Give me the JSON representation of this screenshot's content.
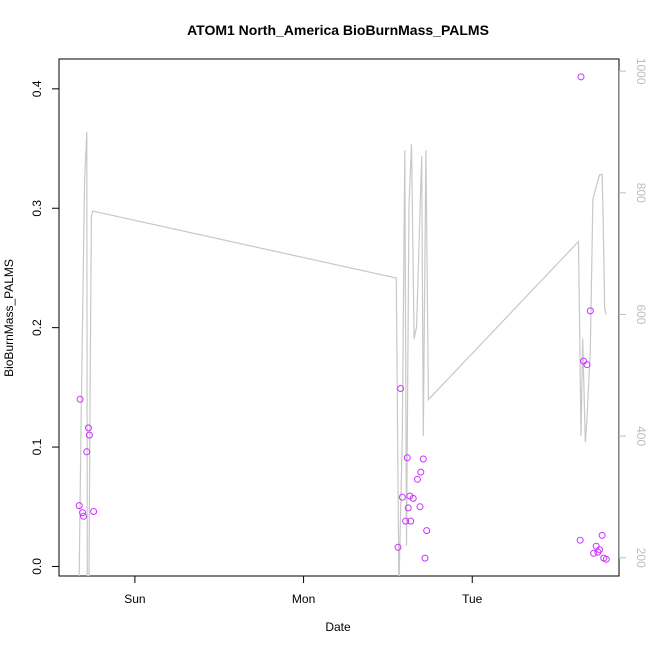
{
  "chart_data": {
    "type": "scatter",
    "title": "ATOM1 North_America BioBurnMass_PALMS",
    "xlabel": "Date",
    "ylabel": "BioBurnMass_PALMS",
    "x_ticks": [
      {
        "label": "Sun",
        "value": 0.0
      },
      {
        "label": "Mon",
        "value": 1.0
      },
      {
        "label": "Tue",
        "value": 2.0
      }
    ],
    "xlim": [
      -0.45,
      2.87
    ],
    "ylim": [
      -0.008,
      0.425
    ],
    "y_ticks": [
      0.0,
      0.1,
      0.2,
      0.3,
      0.4
    ],
    "y_right": {
      "reversed": true,
      "ylim": [
        1020,
        170
      ],
      "ticks": [
        200,
        400,
        600,
        800,
        1000
      ],
      "color": "#bdbdbd"
    },
    "points_color": "#cc33ff",
    "line_color": "#c8c8c8",
    "series": [
      {
        "values": [
          [
            -0.33,
            0.051
          ],
          [
            -0.325,
            0.14
          ],
          [
            -0.31,
            0.045
          ],
          [
            -0.305,
            0.042
          ],
          [
            -0.285,
            0.096
          ],
          [
            -0.275,
            0.116
          ],
          [
            -0.27,
            0.11
          ],
          [
            -0.245,
            0.046
          ],
          [
            1.56,
            0.016
          ],
          [
            1.575,
            0.149
          ],
          [
            1.585,
            0.058
          ],
          [
            1.605,
            0.038
          ],
          [
            1.615,
            0.091
          ],
          [
            1.62,
            0.049
          ],
          [
            1.63,
            0.059
          ],
          [
            1.635,
            0.038
          ],
          [
            1.65,
            0.057
          ],
          [
            1.675,
            0.073
          ],
          [
            1.69,
            0.05
          ],
          [
            1.695,
            0.079
          ],
          [
            1.71,
            0.09
          ],
          [
            1.72,
            0.007
          ],
          [
            1.73,
            0.03
          ],
          [
            2.64,
            0.022
          ],
          [
            2.645,
            0.41
          ],
          [
            2.66,
            0.172
          ],
          [
            2.68,
            0.169
          ],
          [
            2.7,
            0.214
          ],
          [
            2.72,
            0.011
          ],
          [
            2.735,
            0.017
          ],
          [
            2.745,
            0.012
          ],
          [
            2.755,
            0.014
          ],
          [
            2.77,
            0.026
          ],
          [
            2.78,
            0.007
          ],
          [
            2.795,
            0.006
          ]
        ]
      },
      {
        "axis": "right",
        "values": [
          [
            -0.33,
            170
          ],
          [
            -0.32,
            400
          ],
          [
            -0.305,
            700
          ],
          [
            -0.298,
            820
          ],
          [
            -0.285,
            900
          ],
          [
            -0.282,
            170
          ],
          [
            -0.272,
            170
          ],
          [
            -0.265,
            500
          ],
          [
            -0.258,
            760
          ],
          [
            -0.25,
            770
          ],
          [
            1.55,
            660
          ],
          [
            1.565,
            150
          ],
          [
            1.585,
            400
          ],
          [
            1.6,
            870
          ],
          [
            1.61,
            220
          ],
          [
            1.625,
            780
          ],
          [
            1.64,
            880
          ],
          [
            1.655,
            560
          ],
          [
            1.67,
            580
          ],
          [
            1.69,
            770
          ],
          [
            1.7,
            860
          ],
          [
            1.71,
            400
          ],
          [
            1.725,
            870
          ],
          [
            1.74,
            460
          ],
          [
            2.63,
            720
          ],
          [
            2.645,
            400
          ],
          [
            2.655,
            560
          ],
          [
            2.67,
            390
          ],
          [
            2.68,
            430
          ],
          [
            2.7,
            540
          ],
          [
            2.715,
            790
          ],
          [
            2.735,
            810
          ],
          [
            2.755,
            830
          ],
          [
            2.77,
            830
          ],
          [
            2.775,
            770
          ],
          [
            2.785,
            610
          ],
          [
            2.795,
            600
          ]
        ]
      }
    ]
  }
}
